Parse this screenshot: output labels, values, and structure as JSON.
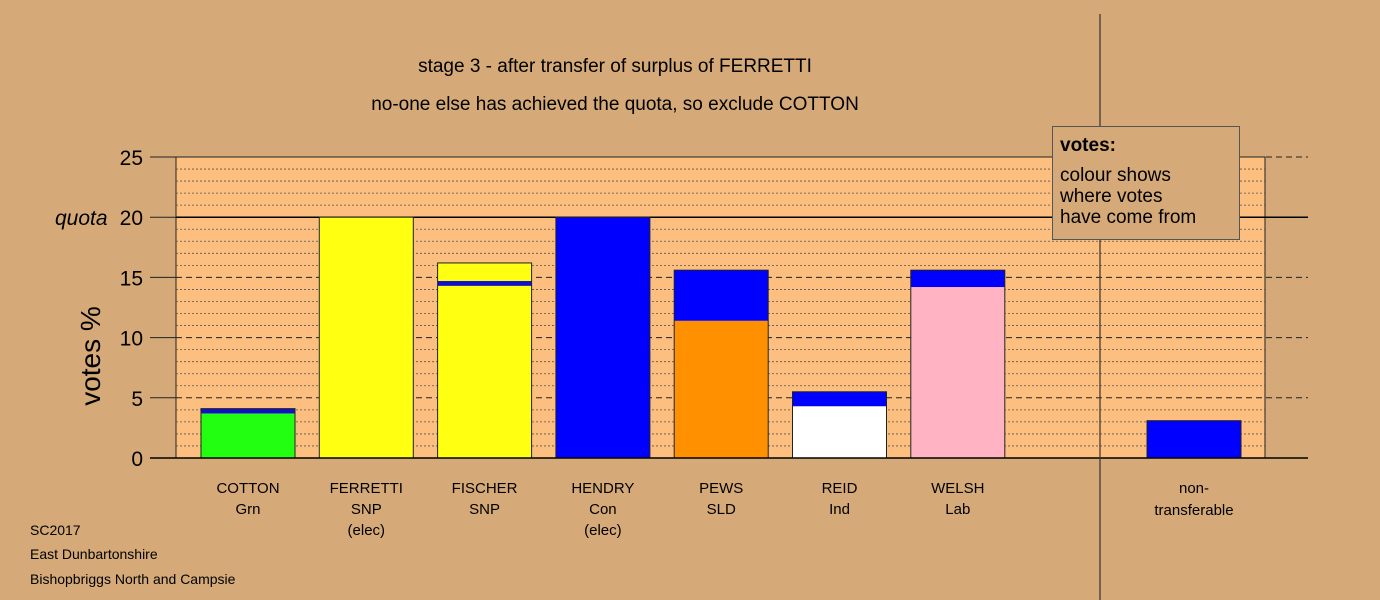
{
  "titles": {
    "line1": "stage 3 - after transfer of surplus of FERRETTI",
    "line2": "no-one else has achieved the quota, so exclude COTTON"
  },
  "legend": {
    "title": "votes:",
    "lines": [
      "colour shows",
      "where votes",
      "have come from"
    ]
  },
  "footer": {
    "line1": "SC2017",
    "line2": "East Dunbartonshire",
    "line3": "Bishopbriggs North and Campsie"
  },
  "chart_data": {
    "type": "bar",
    "stacked": true,
    "ylabel": "votes %",
    "ylim": [
      0,
      25
    ],
    "yticks": [
      0,
      5,
      10,
      15,
      20,
      25
    ],
    "quota": 20,
    "quota_label": "quota",
    "grid": true,
    "categories": [
      {
        "name": "COTTON",
        "party": "Grn",
        "note": ""
      },
      {
        "name": "FERRETTI",
        "party": "SNP",
        "note": "(elec)"
      },
      {
        "name": "FISCHER",
        "party": "SNP",
        "note": ""
      },
      {
        "name": "HENDRY",
        "party": "Con",
        "note": "(elec)"
      },
      {
        "name": "PEWS",
        "party": "SLD",
        "note": ""
      },
      {
        "name": "REID",
        "party": "Ind",
        "note": ""
      },
      {
        "name": "WELSH",
        "party": "Lab",
        "note": ""
      }
    ],
    "segments": [
      [
        {
          "value": 3.7,
          "color": "#22ff11"
        },
        {
          "value": 0.4,
          "color": "#1111cc"
        }
      ],
      [
        {
          "value": 20.0,
          "color": "#ffff11"
        }
      ],
      [
        {
          "value": 14.3,
          "color": "#ffff11"
        },
        {
          "value": 0.4,
          "color": "#1111cc"
        },
        {
          "value": 1.5,
          "color": "#ffff11"
        }
      ],
      [
        {
          "value": 20.0,
          "color": "#0000ff"
        }
      ],
      [
        {
          "value": 11.4,
          "color": "#ff9100"
        },
        {
          "value": 4.2,
          "color": "#0000ff"
        }
      ],
      [
        {
          "value": 4.3,
          "color": "#ffffff"
        },
        {
          "value": 1.2,
          "color": "#0000ff"
        }
      ],
      [
        {
          "value": 14.2,
          "color": "#ffb3c3"
        },
        {
          "value": 1.4,
          "color": "#0000ff"
        }
      ]
    ],
    "nontransferable": {
      "label1": "non-",
      "label2": "transferable",
      "value": 3.1,
      "color": "#0000ff"
    }
  }
}
